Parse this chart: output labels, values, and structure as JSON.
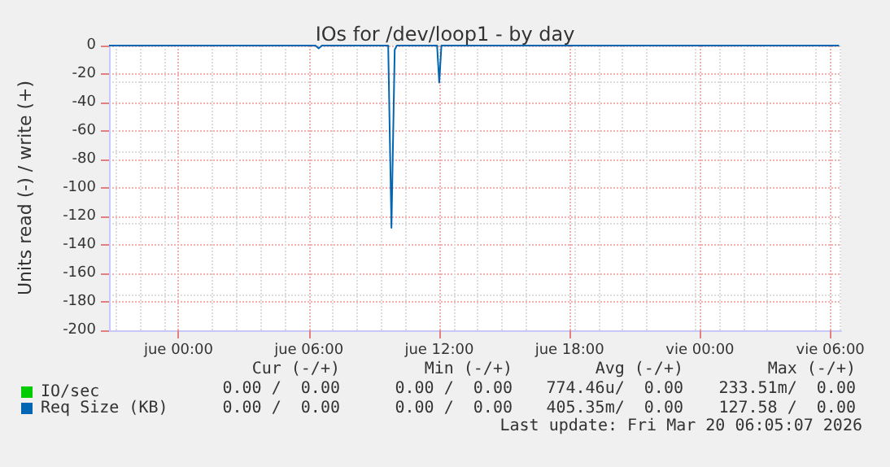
{
  "chart_data": {
    "type": "line",
    "title": "IOs for /dev/loop1 - by day",
    "ylabel": "Units read (-) / write (+)",
    "xlim": [
      "2026-03-18T20:48",
      "2026-03-20T06:30"
    ],
    "xticks": [
      {
        "value": "2026-03-19T00:00",
        "label": "jue 00:00"
      },
      {
        "value": "2026-03-19T06:00",
        "label": "jue 06:00"
      },
      {
        "value": "2026-03-19T12:00",
        "label": "jue 12:00"
      },
      {
        "value": "2026-03-19T18:00",
        "label": "jue 18:00"
      },
      {
        "value": "2026-03-20T00:00",
        "label": "vie 00:00"
      },
      {
        "value": "2026-03-20T06:00",
        "label": "vie 06:00"
      }
    ],
    "ylim": [
      -200,
      0
    ],
    "yticks": [
      -200,
      -180,
      -160,
      -140,
      -120,
      -100,
      -80,
      -60,
      -40,
      -20,
      0
    ],
    "grid": true,
    "legend": "bottom left",
    "marker": "none",
    "line_style": "solid",
    "series": [
      {
        "name": "IO/sec",
        "color": "#00cc00"
      },
      {
        "name": "Req Size (KB)",
        "color": "#0066b3",
        "x": [
          "2026-03-18T20:48",
          "2026-03-19T06:18",
          "2026-03-19T06:27",
          "2026-03-19T06:36",
          "2026-03-19T09:39",
          "2026-03-19T09:48",
          "2026-03-19T09:57",
          "2026-03-19T10:03",
          "2026-03-19T11:54",
          "2026-03-19T12:00",
          "2026-03-19T12:06",
          "2026-03-20T06:24"
        ],
        "values": [
          0,
          0,
          -2,
          0,
          0,
          -128,
          -3,
          0,
          0,
          -26,
          0,
          0
        ]
      }
    ],
    "annotations": [
      "Cur (-/+)",
      "Min (-/+)",
      "Avg (-/+)",
      "Max (-/+)",
      "0.00 /  0.00",
      "0.00 /  0.00",
      "774.46u/  0.00",
      "233.51m/  0.00",
      "0.00 /  0.00",
      "0.00 /  0.00",
      "405.35m/  0.00",
      "127.58 /  0.00",
      "Last update: Fri Mar 20 06:05:07 2026"
    ]
  }
}
